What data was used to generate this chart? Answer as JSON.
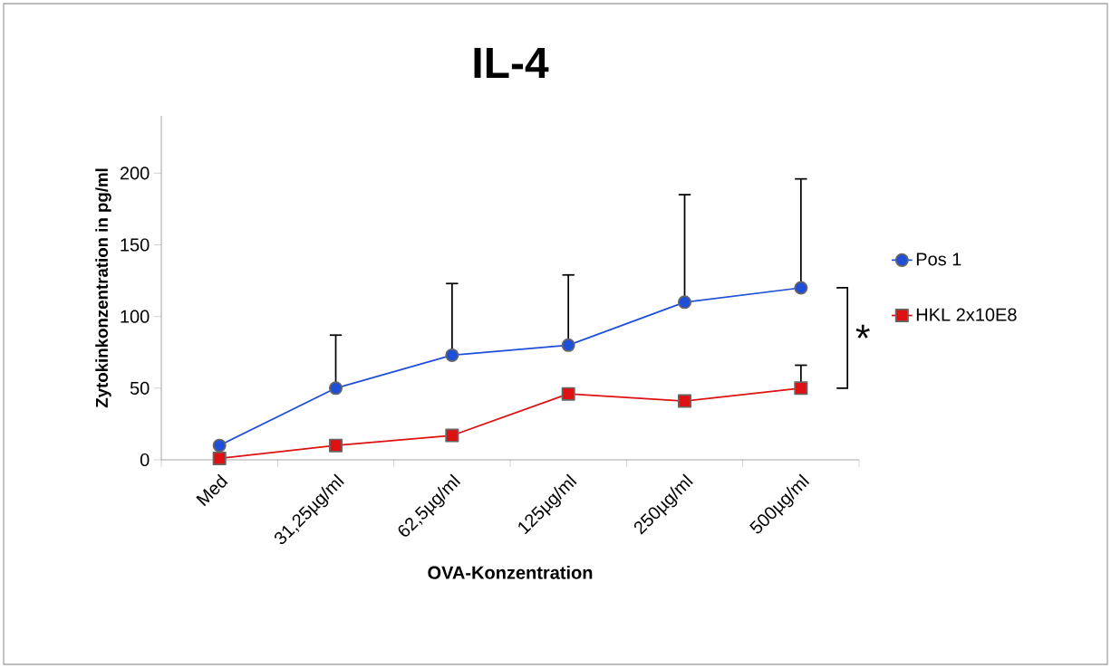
{
  "chart_data": {
    "type": "line",
    "title": "IL-4",
    "xlabel": "OVA-Konzentration",
    "ylabel": "Zytokinkonzentration in pg/ml",
    "categories": [
      "Med",
      "31,25µg/ml",
      "62,5µg/ml",
      "125µg/ml",
      "250µg/ml",
      "500µg/ml"
    ],
    "series": [
      {
        "name": "Pos 1",
        "color": "#1f4fd8",
        "marker": "circle",
        "values": [
          10,
          50,
          73,
          80,
          110,
          120
        ],
        "errors": [
          null,
          [
            50,
            87
          ],
          [
            73,
            123
          ],
          [
            80,
            129
          ],
          [
            110,
            185
          ],
          [
            120,
            196
          ]
        ]
      },
      {
        "name": "HKL 2x10E8",
        "color": "#dd1111",
        "marker": "square",
        "values": [
          1,
          10,
          17,
          46,
          41,
          50
        ],
        "errors": [
          null,
          null,
          null,
          null,
          null,
          [
            50,
            66
          ]
        ]
      }
    ],
    "ylim": [
      0,
      240
    ],
    "yticks": [
      0,
      50,
      100,
      150,
      200
    ],
    "legend": "right",
    "grid": false,
    "annotations": [
      "*"
    ]
  }
}
